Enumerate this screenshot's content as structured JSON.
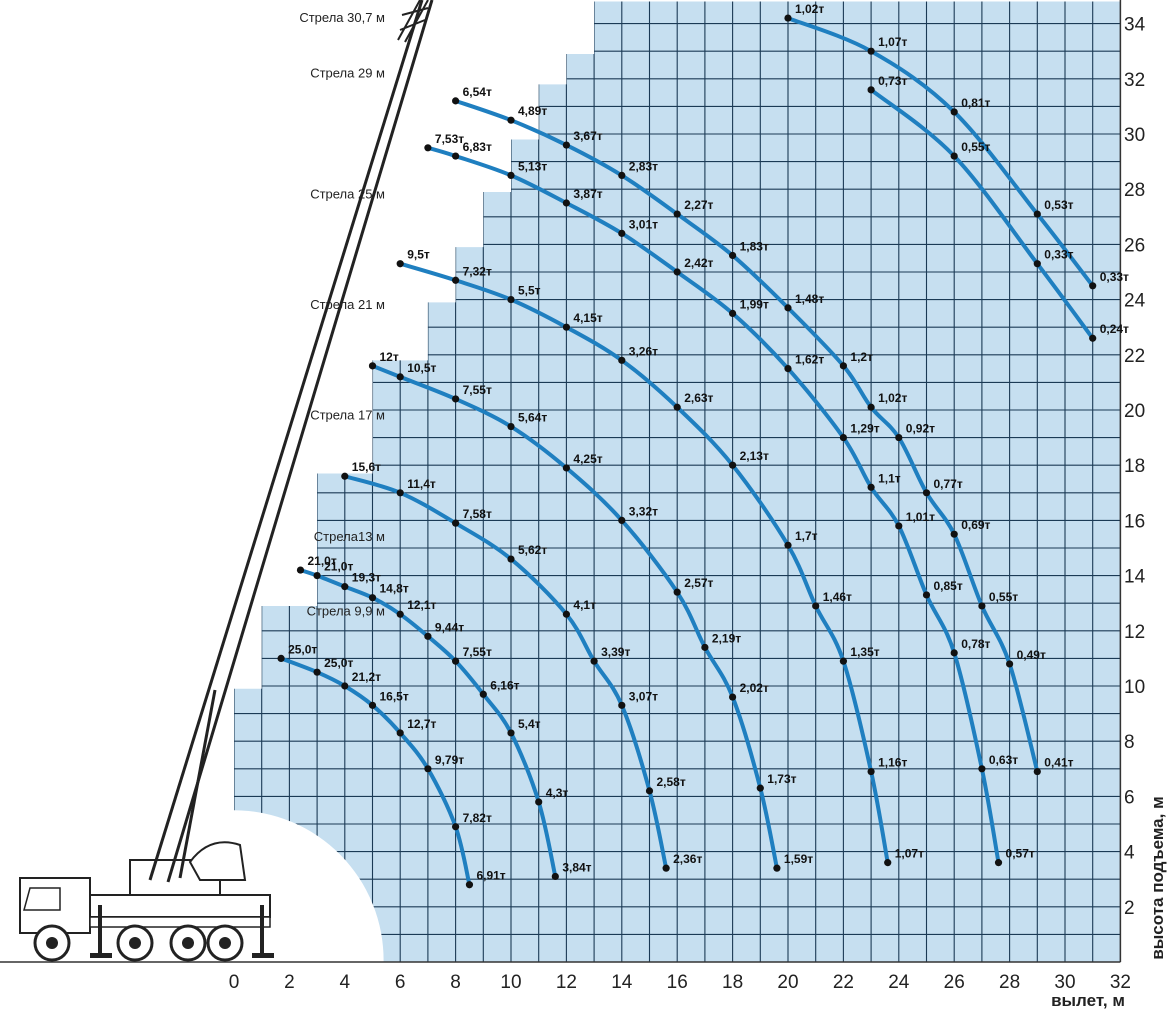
{
  "colors": {
    "grid_fill": "#c6dff0",
    "grid_line": "#1b3a55",
    "curve": "#1f7fc0",
    "point": "#111111"
  },
  "chart_data": {
    "type": "line",
    "xlabel": "вылет, м",
    "ylabel": "высота подъема, м",
    "xlim": [
      0,
      32
    ],
    "ylim": [
      0,
      34
    ],
    "x_ticks": [
      "0",
      "2",
      "4",
      "6",
      "8",
      "10",
      "12",
      "14",
      "16",
      "18",
      "20",
      "22",
      "24",
      "26",
      "28",
      "30",
      "32"
    ],
    "y_ticks": [
      "2",
      "4",
      "6",
      "8",
      "10",
      "12",
      "14",
      "16",
      "18",
      "20",
      "22",
      "24",
      "26",
      "28",
      "30",
      "32",
      "34"
    ],
    "grid": true,
    "boom_labels": [
      {
        "text": "Стрела 30,7 м",
        "height": 34.2
      },
      {
        "text": "Стрела 29 м",
        "height": 32.2
      },
      {
        "text": "Стрела 25 м",
        "height": 27.8
      },
      {
        "text": "Стрела 21 м",
        "height": 23.8
      },
      {
        "text": "Стрела 17 м",
        "height": 19.8
      },
      {
        "text": "Стрела13 м",
        "height": 15.4
      },
      {
        "text": "Стрела  9,9 м",
        "height": 12.7
      }
    ],
    "series": [
      {
        "name": "Стрела  9,9 м",
        "points": [
          {
            "x": 1.7,
            "y": 11.0,
            "label": "25,0т"
          },
          {
            "x": 3.0,
            "y": 10.5,
            "label": "25,0т"
          },
          {
            "x": 4.0,
            "y": 10.0,
            "label": "21,2т"
          },
          {
            "x": 5.0,
            "y": 9.3,
            "label": "16,5т"
          },
          {
            "x": 6.0,
            "y": 8.3,
            "label": "12,7т"
          },
          {
            "x": 7.0,
            "y": 7.0,
            "label": "9,79т"
          },
          {
            "x": 8.0,
            "y": 4.9,
            "label": "7,82т"
          },
          {
            "x": 8.5,
            "y": 2.8,
            "label": "6,91т"
          }
        ]
      },
      {
        "name": "Стрела13 м",
        "points": [
          {
            "x": 2.4,
            "y": 14.2,
            "label": "21,0т"
          },
          {
            "x": 3.0,
            "y": 14.0,
            "label": "21,0т"
          },
          {
            "x": 4.0,
            "y": 13.6,
            "label": "19,3т"
          },
          {
            "x": 5.0,
            "y": 13.2,
            "label": "14,8т"
          },
          {
            "x": 6.0,
            "y": 12.6,
            "label": "12,1т"
          },
          {
            "x": 7.0,
            "y": 11.8,
            "label": "9,44т"
          },
          {
            "x": 8.0,
            "y": 10.9,
            "label": "7,55т"
          },
          {
            "x": 9.0,
            "y": 9.7,
            "label": "6,16т"
          },
          {
            "x": 10.0,
            "y": 8.3,
            "label": "5,4т"
          },
          {
            "x": 11.0,
            "y": 5.8,
            "label": "4,3т"
          },
          {
            "x": 11.6,
            "y": 3.1,
            "label": "3,84т"
          }
        ]
      },
      {
        "name": "Стрела 17 м",
        "points": [
          {
            "x": 4.0,
            "y": 17.6,
            "label": "15,6т"
          },
          {
            "x": 6.0,
            "y": 17.0,
            "label": "11,4т"
          },
          {
            "x": 8.0,
            "y": 15.9,
            "label": "7,58т"
          },
          {
            "x": 10.0,
            "y": 14.6,
            "label": "5,62т"
          },
          {
            "x": 12.0,
            "y": 12.6,
            "label": "4,1т"
          },
          {
            "x": 13.0,
            "y": 10.9,
            "label": "3,39т"
          },
          {
            "x": 14.0,
            "y": 9.3,
            "label": "3,07т"
          },
          {
            "x": 15.0,
            "y": 6.2,
            "label": "2,58т"
          },
          {
            "x": 15.6,
            "y": 3.4,
            "label": "2,36т"
          }
        ]
      },
      {
        "name": "Стрела 21 м",
        "points": [
          {
            "x": 5.0,
            "y": 21.6,
            "label": "12т"
          },
          {
            "x": 6.0,
            "y": 21.2,
            "label": "10,5т"
          },
          {
            "x": 8.0,
            "y": 20.4,
            "label": "7,55т"
          },
          {
            "x": 10.0,
            "y": 19.4,
            "label": "5,64т"
          },
          {
            "x": 12.0,
            "y": 17.9,
            "label": "4,25т"
          },
          {
            "x": 14.0,
            "y": 16.0,
            "label": "3,32т"
          },
          {
            "x": 16.0,
            "y": 13.4,
            "label": "2,57т"
          },
          {
            "x": 17.0,
            "y": 11.4,
            "label": "2,19т"
          },
          {
            "x": 18.0,
            "y": 9.6,
            "label": "2,02т"
          },
          {
            "x": 19.0,
            "y": 6.3,
            "label": "1,73т"
          },
          {
            "x": 19.6,
            "y": 3.4,
            "label": "1,59т"
          }
        ]
      },
      {
        "name": "Стрела 25 м",
        "points": [
          {
            "x": 6.0,
            "y": 25.3,
            "label": "9,5т"
          },
          {
            "x": 8.0,
            "y": 24.7,
            "label": "7,32т"
          },
          {
            "x": 10.0,
            "y": 24.0,
            "label": "5,5т"
          },
          {
            "x": 12.0,
            "y": 23.0,
            "label": "4,15т"
          },
          {
            "x": 14.0,
            "y": 21.8,
            "label": "3,26т"
          },
          {
            "x": 16.0,
            "y": 20.1,
            "label": "2,63т"
          },
          {
            "x": 18.0,
            "y": 18.0,
            "label": "2,13т"
          },
          {
            "x": 20.0,
            "y": 15.1,
            "label": "1,7т"
          },
          {
            "x": 21.0,
            "y": 12.9,
            "label": "1,46т"
          },
          {
            "x": 22.0,
            "y": 10.9,
            "label": "1,35т"
          },
          {
            "x": 23.0,
            "y": 6.9,
            "label": "1,16т"
          },
          {
            "x": 23.6,
            "y": 3.6,
            "label": "1,07т"
          }
        ]
      },
      {
        "name": "Стрела 29 м",
        "points": [
          {
            "x": 7.0,
            "y": 29.5,
            "label": "7,53т"
          },
          {
            "x": 8.0,
            "y": 29.2,
            "label": "6,83т"
          },
          {
            "x": 10.0,
            "y": 28.5,
            "label": "5,13т"
          },
          {
            "x": 12.0,
            "y": 27.5,
            "label": "3,87т"
          },
          {
            "x": 14.0,
            "y": 26.4,
            "label": "3,01т"
          },
          {
            "x": 16.0,
            "y": 25.0,
            "label": "2,42т"
          },
          {
            "x": 18.0,
            "y": 23.5,
            "label": "1,99т"
          },
          {
            "x": 20.0,
            "y": 21.5,
            "label": "1,62т"
          },
          {
            "x": 22.0,
            "y": 19.0,
            "label": "1,29т"
          },
          {
            "x": 23.0,
            "y": 17.2,
            "label": "1,1т"
          },
          {
            "x": 24.0,
            "y": 15.8,
            "label": "1,01т"
          },
          {
            "x": 25.0,
            "y": 13.3,
            "label": "0,85т"
          },
          {
            "x": 26.0,
            "y": 11.2,
            "label": "0,78т"
          },
          {
            "x": 27.0,
            "y": 7.0,
            "label": "0,63т"
          },
          {
            "x": 27.6,
            "y": 3.6,
            "label": "0,57т"
          }
        ]
      },
      {
        "name": "Стрела 30,7 м",
        "points": [
          {
            "x": 8.0,
            "y": 31.2,
            "label": "6,54т"
          },
          {
            "x": 10.0,
            "y": 30.5,
            "label": "4,89т"
          },
          {
            "x": 12.0,
            "y": 29.6,
            "label": "3,67т"
          },
          {
            "x": 14.0,
            "y": 28.5,
            "label": "2,83т"
          },
          {
            "x": 16.0,
            "y": 27.1,
            "label": "2,27т"
          },
          {
            "x": 18.0,
            "y": 25.6,
            "label": "1,83т"
          },
          {
            "x": 20.0,
            "y": 23.7,
            "label": "1,48т"
          },
          {
            "x": 22.0,
            "y": 21.6,
            "label": "1,2т"
          },
          {
            "x": 23.0,
            "y": 20.1,
            "label": "1,02т"
          },
          {
            "x": 24.0,
            "y": 19.0,
            "label": "0,92т"
          },
          {
            "x": 25.0,
            "y": 17.0,
            "label": "0,77т"
          },
          {
            "x": 26.0,
            "y": 15.5,
            "label": "0,69т"
          },
          {
            "x": 27.0,
            "y": 12.9,
            "label": "0,55т"
          },
          {
            "x": 28.0,
            "y": 10.8,
            "label": "0,49т"
          },
          {
            "x": 29.0,
            "y": 6.9,
            "label": "0,41т"
          }
        ]
      },
      {
        "name": "Стрела 30,7 м",
        "points": [
          {
            "x": 20.0,
            "y": 34.2,
            "label": "1,02т"
          },
          {
            "x": 23.0,
            "y": 33.0,
            "label": "1,07т"
          },
          {
            "x": 26.0,
            "y": 30.8,
            "label": "0,81т"
          },
          {
            "x": 29.0,
            "y": 27.1,
            "label": "0,53т"
          },
          {
            "x": 31.0,
            "y": 24.5,
            "label": "0,33т"
          }
        ]
      },
      {
        "name": "Стрела 30,7 м",
        "points": [
          {
            "x": 23.0,
            "y": 31.6,
            "label": "0,73т"
          },
          {
            "x": 26.0,
            "y": 29.2,
            "label": "0,55т"
          },
          {
            "x": 29.0,
            "y": 25.3,
            "label": "0,33т"
          },
          {
            "x": 31.0,
            "y": 22.6,
            "label": "0,24т"
          }
        ]
      }
    ]
  }
}
